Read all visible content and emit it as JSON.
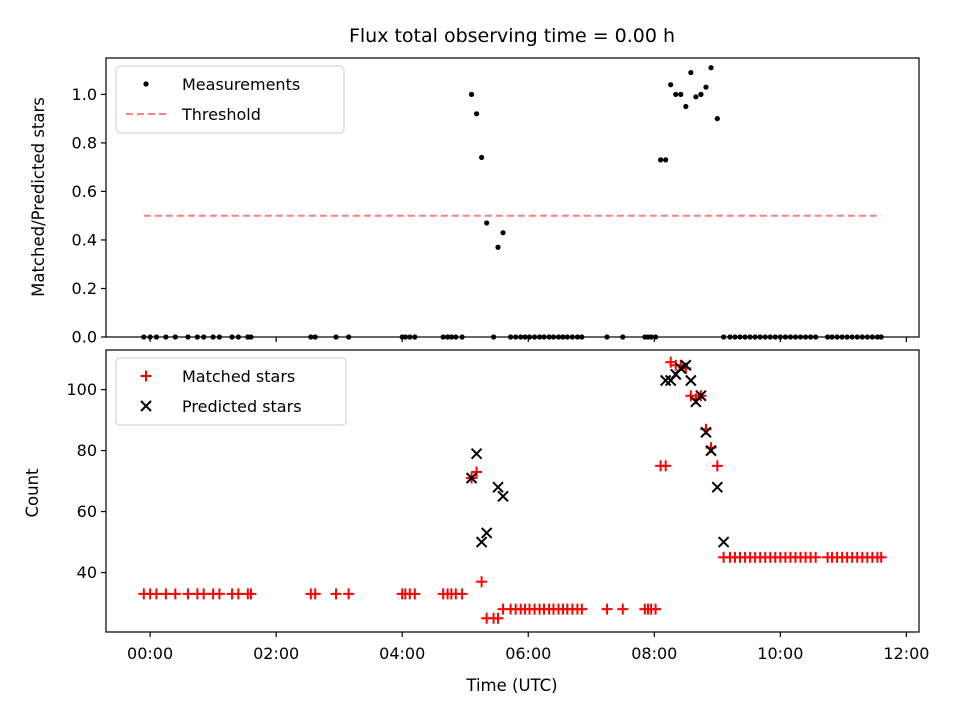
{
  "chart_data": [
    {
      "type": "scatter",
      "title": "Flux total observing time = 0.00 h",
      "xlabel": "",
      "ylabel": "Matched/Predicted stars",
      "xlim": [
        -0.7,
        12.2
      ],
      "ylim": [
        0,
        1.15
      ],
      "yticks": [
        0.0,
        0.2,
        0.4,
        0.6,
        0.8,
        1.0
      ],
      "ytick_labels": [
        "0.0",
        "0.2",
        "0.4",
        "0.6",
        "0.8",
        "1.0"
      ],
      "legend": "top-left",
      "series": [
        {
          "name": "Measurements",
          "kind": "dot",
          "color": "#000000",
          "x": [
            -0.1,
            0.0,
            0.1,
            0.25,
            0.4,
            0.6,
            0.75,
            0.85,
            1.0,
            1.1,
            1.3,
            1.4,
            1.55,
            1.6,
            2.55,
            2.62,
            2.95,
            3.15,
            4.0,
            4.05,
            4.12,
            4.2,
            4.65,
            4.72,
            4.78,
            4.85,
            4.95,
            5.1,
            5.18,
            5.26,
            5.34,
            5.45,
            5.52,
            5.6,
            5.72,
            5.8,
            5.88,
            5.95,
            6.02,
            6.1,
            6.18,
            6.25,
            6.33,
            6.4,
            6.48,
            6.55,
            6.62,
            6.7,
            6.78,
            6.85,
            7.25,
            7.5,
            7.85,
            7.9,
            7.95,
            8.02,
            8.1,
            8.18,
            8.26,
            8.34,
            8.42,
            8.5,
            8.58,
            8.66,
            8.74,
            8.82,
            8.9,
            9.0,
            9.1,
            9.2,
            9.28,
            9.36,
            9.44,
            9.52,
            9.6,
            9.68,
            9.76,
            9.84,
            9.92,
            10.0,
            10.08,
            10.16,
            10.24,
            10.32,
            10.4,
            10.48,
            10.56,
            10.75,
            10.82,
            10.9,
            10.98,
            11.06,
            11.14,
            11.22,
            11.3,
            11.38,
            11.46,
            11.54,
            11.6
          ],
          "y": [
            0,
            0,
            0,
            0,
            0,
            0,
            0,
            0,
            0,
            0,
            0,
            0,
            0,
            0,
            0,
            0,
            0,
            0,
            0,
            0,
            0,
            0,
            0,
            0,
            0,
            0,
            0,
            1.0,
            0.92,
            0.74,
            0.47,
            0,
            0.37,
            0.43,
            0,
            0,
            0,
            0,
            0,
            0,
            0,
            0,
            0,
            0,
            0,
            0,
            0,
            0,
            0,
            0,
            0,
            0,
            0,
            0,
            0,
            0,
            0.73,
            0.73,
            1.04,
            1.0,
            1.0,
            0.95,
            1.09,
            0.99,
            1.0,
            1.03,
            1.11,
            0.9,
            0,
            0,
            0,
            0,
            0,
            0,
            0,
            0,
            0,
            0,
            0,
            0,
            0,
            0,
            0,
            0,
            0,
            0,
            0,
            0,
            0,
            0,
            0,
            0,
            0,
            0,
            0,
            0,
            0,
            0,
            0
          ]
        },
        {
          "name": "Threshold",
          "kind": "dashed-line",
          "color": "#ff7f7f",
          "x": [
            -0.1,
            11.6
          ],
          "y": [
            0.5,
            0.5
          ]
        }
      ]
    },
    {
      "type": "scatter",
      "title": "",
      "xlabel": "Time (UTC)",
      "ylabel": "Count",
      "xlim": [
        -0.7,
        12.2
      ],
      "ylim": [
        20.5,
        113
      ],
      "yticks": [
        40,
        60,
        80,
        100
      ],
      "ytick_labels": [
        "40",
        "60",
        "80",
        "100"
      ],
      "xticks": [
        0,
        2,
        4,
        6,
        8,
        10,
        12
      ],
      "xtick_labels": [
        "00:00",
        "02:00",
        "04:00",
        "06:00",
        "08:00",
        "10:00",
        "12:00"
      ],
      "legend": "top-left",
      "series": [
        {
          "name": "Matched stars",
          "marker": "plus",
          "color": "#ff0000",
          "x": [
            -0.1,
            0.0,
            0.1,
            0.25,
            0.4,
            0.6,
            0.75,
            0.85,
            1.0,
            1.1,
            1.3,
            1.4,
            1.55,
            1.6,
            2.55,
            2.62,
            2.95,
            3.15,
            4.0,
            4.05,
            4.12,
            4.2,
            4.65,
            4.72,
            4.78,
            4.85,
            4.95,
            5.1,
            5.18,
            5.26,
            5.34,
            5.45,
            5.52,
            5.6,
            5.72,
            5.8,
            5.88,
            5.95,
            6.02,
            6.1,
            6.18,
            6.25,
            6.33,
            6.4,
            6.48,
            6.55,
            6.62,
            6.7,
            6.78,
            6.85,
            7.25,
            7.5,
            7.85,
            7.9,
            7.95,
            8.02,
            8.1,
            8.18,
            8.26,
            8.34,
            8.42,
            8.5,
            8.58,
            8.66,
            8.74,
            8.82,
            8.9,
            9.0,
            9.1,
            9.2,
            9.28,
            9.36,
            9.44,
            9.52,
            9.6,
            9.68,
            9.76,
            9.84,
            9.92,
            10.0,
            10.08,
            10.16,
            10.24,
            10.32,
            10.4,
            10.48,
            10.56,
            10.75,
            10.82,
            10.9,
            10.98,
            11.06,
            11.14,
            11.22,
            11.3,
            11.38,
            11.46,
            11.54,
            11.6
          ],
          "y": [
            33,
            33,
            33,
            33,
            33,
            33,
            33,
            33,
            33,
            33,
            33,
            33,
            33,
            33,
            33,
            33,
            33,
            33,
            33,
            33,
            33,
            33,
            33,
            33,
            33,
            33,
            33,
            71,
            73,
            37,
            25,
            25,
            25,
            28,
            28,
            28,
            28,
            28,
            28,
            28,
            28,
            28,
            28,
            28,
            28,
            28,
            28,
            28,
            28,
            28,
            28,
            28,
            28,
            28,
            28,
            28,
            75,
            75,
            109,
            108,
            108,
            107,
            98,
            97,
            98,
            87,
            81,
            75,
            45,
            45,
            45,
            45,
            45,
            45,
            45,
            45,
            45,
            45,
            45,
            45,
            45,
            45,
            45,
            45,
            45,
            45,
            45,
            45,
            45,
            45,
            45,
            45,
            45,
            45,
            45,
            45,
            45,
            45,
            45
          ]
        },
        {
          "name": "Predicted stars",
          "marker": "x",
          "color": "#000000",
          "x": [
            5.1,
            5.18,
            5.26,
            5.34,
            5.52,
            5.6,
            8.18,
            8.26,
            8.34,
            8.42,
            8.5,
            8.58,
            8.66,
            8.74,
            8.82,
            8.9,
            9.0,
            9.1
          ],
          "y": [
            71,
            79,
            50,
            53,
            68,
            65,
            103,
            103,
            105,
            107,
            108,
            103,
            96,
            98,
            86,
            80,
            68,
            50
          ]
        }
      ]
    }
  ]
}
